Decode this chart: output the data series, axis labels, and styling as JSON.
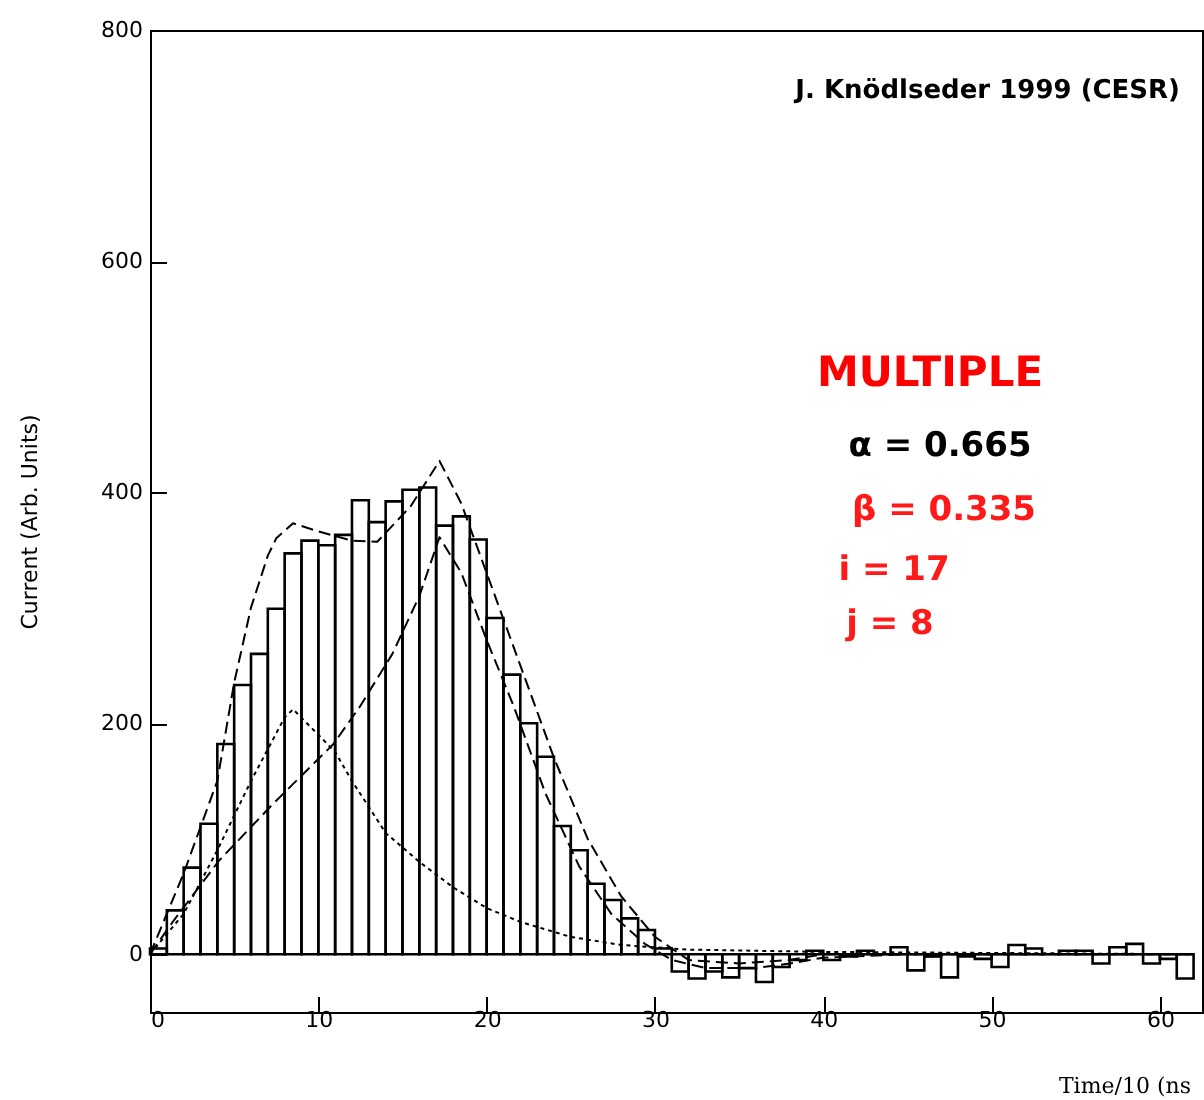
{
  "chart_data": {
    "type": "histogram",
    "xlabel": "Time/10 (ns",
    "ylabel": "Current (Arb. Units)",
    "annotations": [
      "J. Knödlseder 1999 (CESR)",
      "MULTIPLE",
      "α = 0.665",
      "β = 0.335",
      "i = 17",
      "j = 8"
    ],
    "bins": [
      0,
      1,
      2,
      3,
      4,
      5,
      6,
      7,
      8,
      9,
      10,
      11,
      12,
      13,
      14,
      15,
      16,
      17,
      18,
      19,
      20,
      21,
      22,
      23,
      24,
      25,
      26,
      27,
      28,
      29,
      30,
      31,
      32,
      33,
      34,
      35,
      36,
      37,
      38,
      39,
      40,
      41,
      42,
      43,
      44,
      45,
      46,
      47,
      48,
      49,
      50,
      51,
      52,
      53,
      54,
      55,
      56,
      57,
      58,
      59,
      60,
      61,
      62
    ],
    "series": [
      {
        "color": "#000000",
        "values": [
          5,
          38,
          75,
          113,
          182,
          233,
          260,
          299,
          347,
          358,
          354,
          363,
          393,
          374,
          392,
          402,
          404,
          371,
          379,
          359,
          291,
          242,
          200,
          171,
          111,
          90,
          61,
          47,
          31,
          21,
          5,
          -15,
          -21,
          -15,
          -20,
          -12,
          -24,
          -11,
          -5,
          3,
          -5,
          -2,
          3,
          0,
          6,
          -14,
          -2,
          -20,
          -2,
          -4,
          -11,
          8,
          5,
          0,
          3,
          3,
          -8,
          6,
          9,
          -8,
          -4,
          -21
        ]
      },
      {
        "type": "line",
        "color": "#000000",
        "line_style": "dashed",
        "x": [
          0,
          2,
          3,
          4,
          5,
          6,
          7,
          7.5,
          8.5,
          10,
          12,
          13.5,
          15.5,
          17.2,
          18.5,
          20,
          22,
          24,
          26,
          28,
          30,
          32,
          35,
          38,
          40,
          62
        ],
        "values": [
          0,
          70,
          110,
          150,
          235,
          300,
          345,
          360,
          373,
          366,
          358,
          357,
          388,
          427,
          390,
          330,
          250,
          170,
          100,
          50,
          15,
          -5,
          -8,
          -5,
          0,
          0
        ]
      },
      {
        "type": "line",
        "color": "#000000",
        "line_style": "dotted",
        "x": [
          0,
          2,
          4,
          6,
          8,
          8.5,
          10,
          11,
          12,
          14,
          16,
          18,
          20,
          22,
          25,
          28,
          32,
          40,
          62
        ],
        "values": [
          0,
          35,
          90,
          150,
          205,
          212,
          190,
          175,
          150,
          105,
          80,
          58,
          40,
          28,
          15,
          8,
          4,
          2,
          0
        ]
      },
      {
        "type": "line",
        "color": "#000000",
        "line_style": "dashed",
        "x": [
          0,
          1.4,
          4.1,
          7.3,
          10.9,
          12.5,
          14.4,
          16,
          17.2,
          18.5,
          20,
          21.6,
          23.5,
          25.5,
          27.4,
          29.4,
          31,
          33,
          36,
          38,
          40,
          45,
          62
        ],
        "values": [
          0,
          29,
          81,
          130,
          182,
          215,
          260,
          310,
          361,
          330,
          272,
          215,
          139,
          76,
          35,
          9,
          -5,
          -12,
          -12,
          -8,
          -3,
          0,
          0
        ]
      }
    ],
    "xlim": [
      0,
      62.5
    ],
    "ylim": [
      -50,
      800
    ],
    "xticks": [
      0,
      10,
      20,
      30,
      40,
      50,
      60
    ],
    "yticks": [
      0,
      200,
      400,
      600,
      800
    ],
    "grid": false
  }
}
